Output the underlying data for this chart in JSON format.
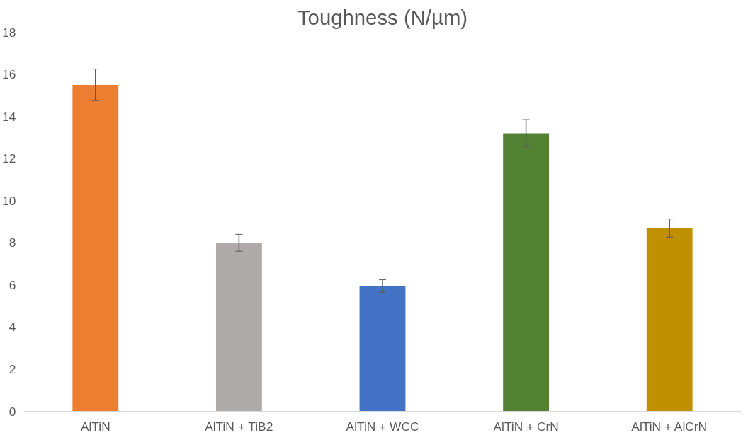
{
  "chart_data": {
    "type": "bar",
    "title": "Toughness (N/µm)",
    "categories": [
      "AlTiN",
      "AlTiN + TiB2",
      "AlTiN + WCC",
      "AlTiN + CrN",
      "AlTiN + AlCrN"
    ],
    "values": [
      15.5,
      8.0,
      5.95,
      13.2,
      8.7
    ],
    "errors": [
      0.75,
      0.4,
      0.3,
      0.65,
      0.43
    ],
    "colors": [
      "#ed7d31",
      "#afabab",
      "#4472c4",
      "#548235",
      "#bf9000"
    ],
    "ylim": [
      0,
      18
    ],
    "yticks": [
      0,
      2,
      4,
      6,
      8,
      10,
      12,
      14,
      16,
      18
    ],
    "grid": false
  }
}
